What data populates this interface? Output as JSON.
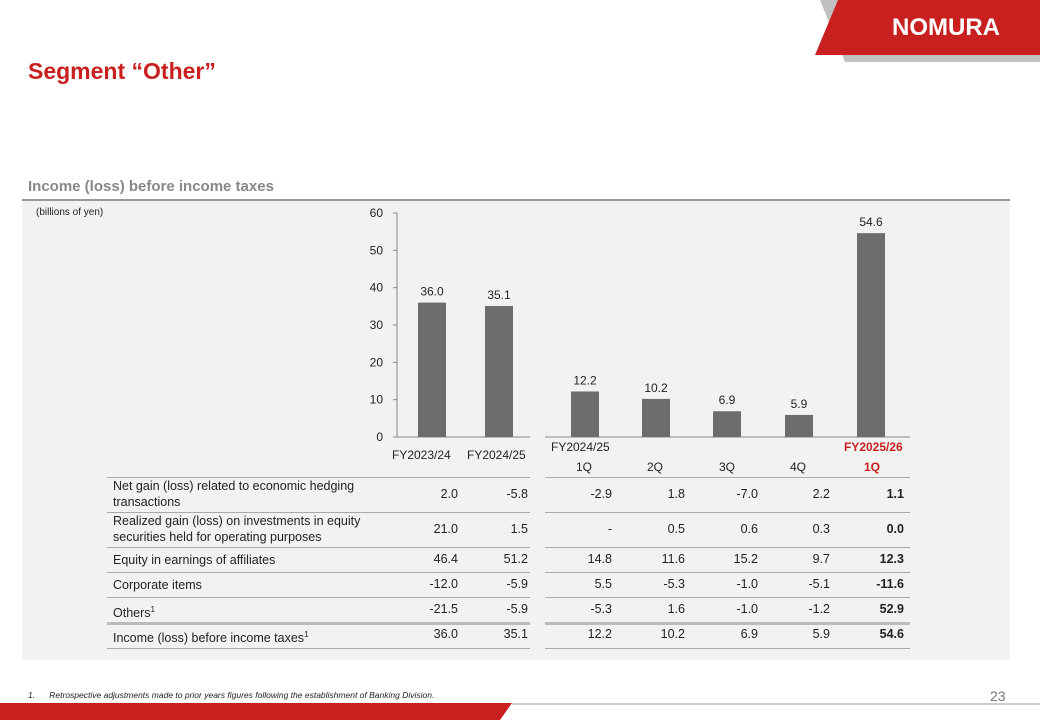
{
  "header": {
    "title": "Segment “Other”",
    "subtitle": "Income (loss) before income taxes",
    "unit": "(billions of yen)",
    "logo": "NOMURA"
  },
  "chart_data": {
    "type": "bar",
    "title": "Income (loss) before income taxes",
    "ylabel": "billions of yen",
    "ylim": [
      0,
      60
    ],
    "yticks": [
      0,
      10,
      20,
      30,
      40,
      50,
      60
    ],
    "categories": [
      "FY2023/24",
      "FY2024/25",
      "FY2024/25 1Q",
      "FY2024/25 2Q",
      "FY2024/25 3Q",
      "FY2024/25 4Q",
      "FY2025/26 1Q"
    ],
    "values": [
      36.0,
      35.1,
      12.2,
      10.2,
      6.9,
      5.9,
      54.6
    ],
    "labels": [
      "36.0",
      "35.1",
      "12.2",
      "10.2",
      "6.9",
      "5.9",
      "54.6"
    ],
    "bar_color": "#6d6d6f"
  },
  "axis": {
    "annual": [
      "FY2023/24",
      "FY2024/25"
    ],
    "fy_prev": "FY2024/25",
    "fy_curr": "FY2025/26",
    "quarters": [
      "1Q",
      "2Q",
      "3Q",
      "4Q"
    ],
    "curr_q": "1Q"
  },
  "table": {
    "rows": [
      {
        "label": "Net gain (loss) related to economic hedging transactions",
        "sup": "",
        "values": [
          "2.0",
          "-5.8",
          "-2.9",
          "1.8",
          "-7.0",
          "2.2",
          "1.1"
        ]
      },
      {
        "label": "Realized gain (loss) on investments in equity securities held for operating purposes",
        "sup": "",
        "values": [
          "21.0",
          "1.5",
          "-",
          "0.5",
          "0.6",
          "0.3",
          "0.0"
        ]
      },
      {
        "label": "Equity in earnings of affiliates",
        "sup": "",
        "values": [
          "46.4",
          "51.2",
          "14.8",
          "11.6",
          "15.2",
          "9.7",
          "12.3"
        ]
      },
      {
        "label": "Corporate items",
        "sup": "",
        "values": [
          "-12.0",
          "-5.9",
          "5.5",
          "-5.3",
          "-1.0",
          "-5.1",
          "-11.6"
        ]
      },
      {
        "label": "Others",
        "sup": "1",
        "values": [
          "-21.5",
          "-5.9",
          "-5.3",
          "1.6",
          "-1.0",
          "-1.2",
          "52.9"
        ]
      },
      {
        "label": "Income (loss) before income taxes",
        "sup": "1",
        "values": [
          "36.0",
          "35.1",
          "12.2",
          "10.2",
          "6.9",
          "5.9",
          "54.6"
        ]
      }
    ]
  },
  "footer": {
    "footnote_num": "1.",
    "footnote": "Retrospective adjustments made to prior years figures following the establishment of Banking Division.",
    "page": "23"
  }
}
